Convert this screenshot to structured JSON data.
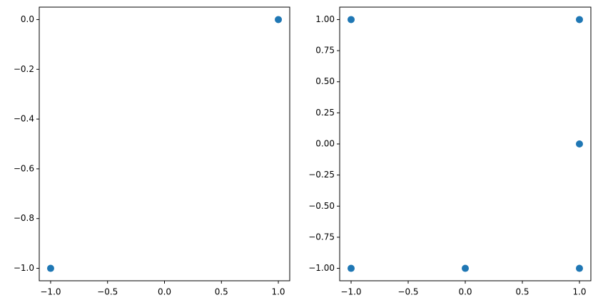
{
  "chart_data": [
    {
      "type": "scatter",
      "color": "#1f77b4",
      "x": [
        1,
        -1
      ],
      "values": [
        0,
        -1
      ],
      "xlim": [
        -1.1,
        1.1
      ],
      "ylim": [
        -1.05,
        0.05
      ],
      "xticks": [
        {
          "value": -1,
          "label": "−1.0"
        },
        {
          "value": -0.5,
          "label": "−0.5"
        },
        {
          "value": 0,
          "label": "0.0"
        },
        {
          "value": 0.5,
          "label": "0.5"
        },
        {
          "value": 1,
          "label": "1.0"
        }
      ],
      "yticks": [
        {
          "value": 0,
          "label": "0.0"
        },
        {
          "value": -0.2,
          "label": "−0.2"
        },
        {
          "value": -0.4,
          "label": "−0.4"
        },
        {
          "value": -0.6,
          "label": "−0.6"
        },
        {
          "value": -0.8,
          "label": "−0.8"
        },
        {
          "value": -1,
          "label": "−1.0"
        }
      ]
    },
    {
      "type": "scatter",
      "color": "#1f77b4",
      "x": [
        -1,
        1,
        1,
        -1,
        0,
        1
      ],
      "values": [
        1,
        1,
        0,
        -1,
        -1,
        -1
      ],
      "xlim": [
        -1.1,
        1.1
      ],
      "ylim": [
        -1.1,
        1.1
      ],
      "xticks": [
        {
          "value": -1,
          "label": "−1.0"
        },
        {
          "value": -0.5,
          "label": "−0.5"
        },
        {
          "value": 0,
          "label": "0.0"
        },
        {
          "value": 0.5,
          "label": "0.5"
        },
        {
          "value": 1,
          "label": "1.0"
        }
      ],
      "yticks": [
        {
          "value": 1,
          "label": "1.00"
        },
        {
          "value": 0.75,
          "label": "0.75"
        },
        {
          "value": 0.5,
          "label": "0.50"
        },
        {
          "value": 0.25,
          "label": "0.25"
        },
        {
          "value": 0,
          "label": "0.00"
        },
        {
          "value": -0.25,
          "label": "−0.25"
        },
        {
          "value": -0.5,
          "label": "−0.50"
        },
        {
          "value": -0.75,
          "label": "−0.75"
        },
        {
          "value": -1,
          "label": "−1.00"
        }
      ]
    }
  ]
}
